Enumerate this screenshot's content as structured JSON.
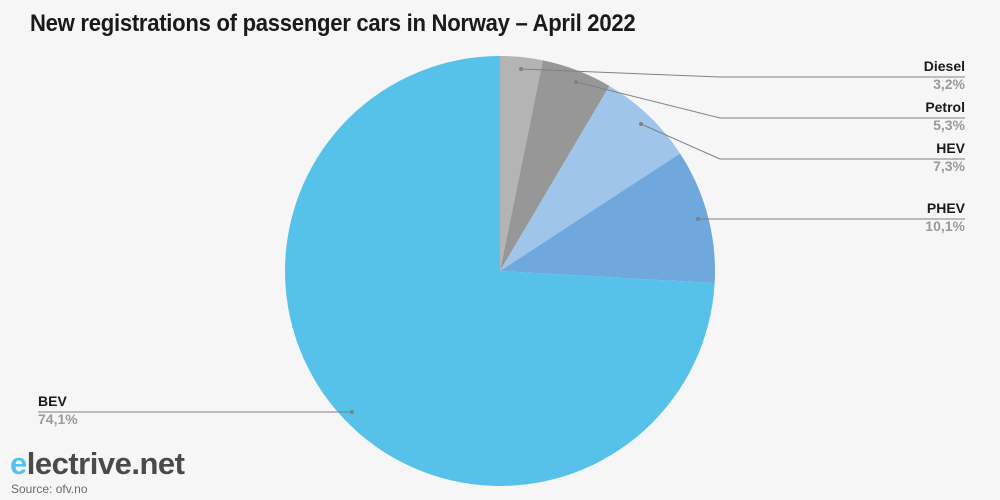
{
  "title": "New registrations of passenger cars in Norway – April 2022",
  "logo": {
    "e": "e",
    "rest": "lectrive.net"
  },
  "source": "Source: ofv.no",
  "colors": {
    "Diesel": "#b4b4b4",
    "Petrol": "#979797",
    "HEV": "#9fc5ea",
    "PHEV": "#6ea8dc",
    "BEV": "#56c2ea",
    "leader": "#808080"
  },
  "labels": {
    "diesel": {
      "name": "Diesel",
      "value": "3,2%"
    },
    "petrol": {
      "name": "Petrol",
      "value": "5,3%"
    },
    "hev": {
      "name": "HEV",
      "value": "7,3%"
    },
    "phev": {
      "name": "PHEV",
      "value": "10,1%"
    },
    "bev": {
      "name": "BEV",
      "value": "74,1%"
    }
  },
  "chart_data": {
    "type": "pie",
    "title": "New registrations of passenger cars in Norway – April 2022",
    "categories": [
      "Diesel",
      "Petrol",
      "HEV",
      "PHEV",
      "BEV"
    ],
    "values": [
      3.2,
      5.3,
      7.3,
      10.1,
      74.1
    ],
    "value_labels": [
      "3,2%",
      "5,3%",
      "7,3%",
      "10,1%",
      "74,1%"
    ],
    "unit": "%",
    "start_angle": "12 o'clock, clockwise",
    "legend": "none (leader-line labels)",
    "source": "ofv.no"
  }
}
